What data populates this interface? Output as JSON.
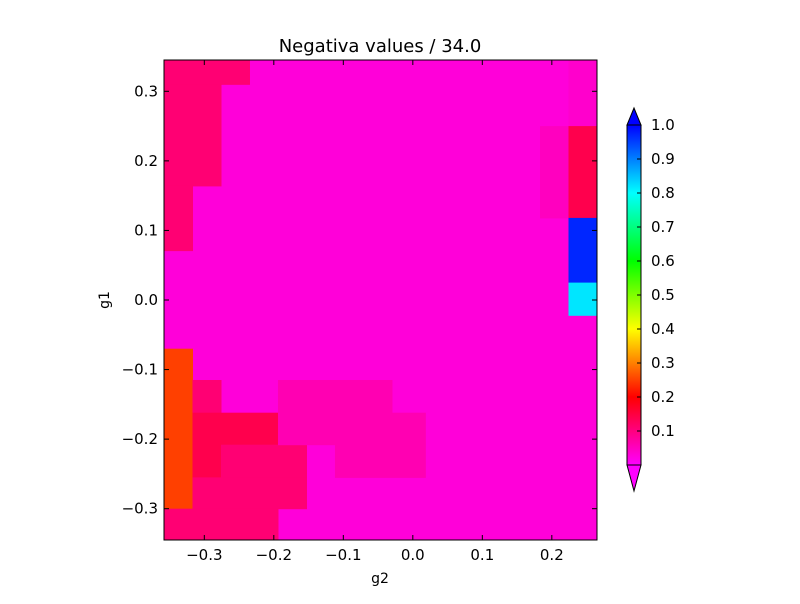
{
  "chart_data": {
    "type": "heatmap",
    "title": "Negativa values / 34.0",
    "xlabel": "g2",
    "ylabel": "g1",
    "xlim": [
      -0.358,
      0.265
    ],
    "ylim": [
      -0.345,
      0.345
    ],
    "x_ticks": [
      -0.3,
      -0.2,
      -0.1,
      0.0,
      0.1,
      0.2
    ],
    "x_tick_labels": [
      "−0.3",
      "−0.2",
      "−0.1",
      "0.0",
      "0.1",
      "0.2"
    ],
    "y_ticks": [
      -0.3,
      -0.2,
      -0.1,
      0.0,
      0.1,
      0.2,
      0.3
    ],
    "y_tick_labels": [
      "−0.3",
      "−0.2",
      "−0.1",
      "0.0",
      "0.1",
      "0.2",
      "0.3"
    ],
    "grid": false,
    "colormap": "gist_rainbow_r",
    "background_value": 0.03,
    "cells": [
      {
        "x0": -0.358,
        "x1": -0.317,
        "y0": 0.31,
        "y1": 0.345,
        "value": 0.11
      },
      {
        "x0": -0.317,
        "x1": -0.235,
        "y0": 0.31,
        "y1": 0.345,
        "value": 0.11
      },
      {
        "x0": -0.358,
        "x1": -0.276,
        "y0": 0.164,
        "y1": 0.31,
        "value": 0.11
      },
      {
        "x0": -0.358,
        "x1": -0.317,
        "y0": 0.071,
        "y1": 0.164,
        "value": 0.11
      },
      {
        "x0": 0.183,
        "x1": 0.224,
        "y0": 0.118,
        "y1": 0.25,
        "value": 0.05
      },
      {
        "x0": 0.224,
        "x1": 0.265,
        "y0": 0.25,
        "y1": 0.345,
        "value": 0.04
      },
      {
        "x0": 0.224,
        "x1": 0.265,
        "y0": 0.118,
        "y1": 0.25,
        "value": 0.14
      },
      {
        "x0": 0.224,
        "x1": 0.265,
        "y0": 0.025,
        "y1": 0.118,
        "value": 0.97
      },
      {
        "x0": 0.224,
        "x1": 0.265,
        "y0": -0.022,
        "y1": 0.025,
        "value": 0.82
      },
      {
        "x0": -0.358,
        "x1": -0.317,
        "y0": -0.115,
        "y1": -0.07,
        "value": 0.25
      },
      {
        "x0": -0.358,
        "x1": -0.317,
        "y0": -0.3,
        "y1": -0.115,
        "value": 0.25
      },
      {
        "x0": -0.317,
        "x1": -0.276,
        "y0": -0.162,
        "y1": -0.115,
        "value": 0.11
      },
      {
        "x0": -0.317,
        "x1": -0.194,
        "y0": -0.208,
        "y1": -0.162,
        "value": 0.14
      },
      {
        "x0": -0.317,
        "x1": -0.276,
        "y0": -0.255,
        "y1": -0.208,
        "value": 0.14
      },
      {
        "x0": -0.276,
        "x1": -0.153,
        "y0": -0.255,
        "y1": -0.208,
        "value": 0.11
      },
      {
        "x0": -0.317,
        "x1": -0.153,
        "y0": -0.3,
        "y1": -0.255,
        "value": 0.11
      },
      {
        "x0": -0.358,
        "x1": -0.194,
        "y0": -0.345,
        "y1": -0.3,
        "value": 0.11
      },
      {
        "x0": -0.194,
        "x1": -0.03,
        "y0": -0.162,
        "y1": -0.115,
        "value": 0.06
      },
      {
        "x0": -0.194,
        "x1": 0.018,
        "y0": -0.208,
        "y1": -0.162,
        "value": 0.06
      },
      {
        "x0": -0.112,
        "x1": 0.018,
        "y0": -0.255,
        "y1": -0.208,
        "value": 0.06
      }
    ],
    "colorbar": {
      "ticks": [
        0.1,
        0.2,
        0.3,
        0.4,
        0.5,
        0.6,
        0.7,
        0.8,
        0.9,
        1.0
      ],
      "tick_labels": [
        "0.1",
        "0.2",
        "0.3",
        "0.4",
        "0.5",
        "0.6",
        "0.7",
        "0.8",
        "0.9",
        "1.0"
      ],
      "min": 0.0,
      "max": 1.0,
      "extend": "both"
    }
  }
}
